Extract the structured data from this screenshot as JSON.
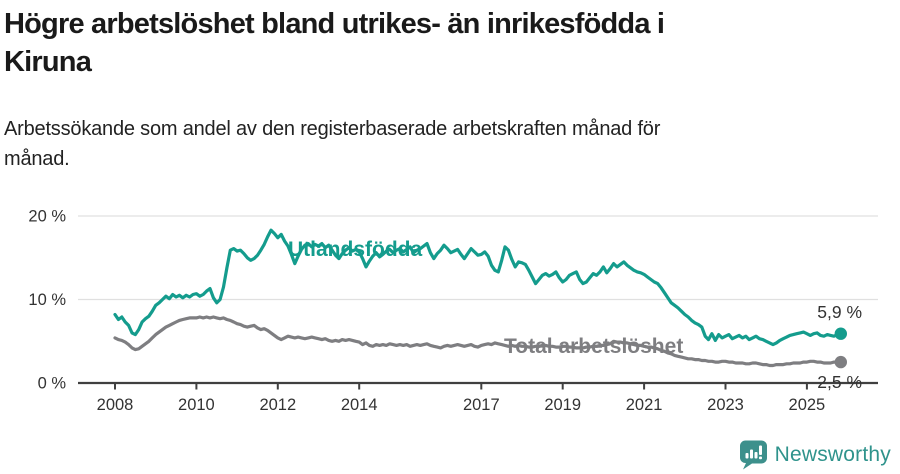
{
  "title": {
    "lines": [
      "Högre arbetslöshet bland utrikes- än inrikesfödda i",
      "Kiruna"
    ]
  },
  "subtitle": {
    "lines": [
      "Arbetssökande som andel av den registerbaserade arbetskraften månad för",
      "månad."
    ]
  },
  "footer": {
    "brand": "Newsworthy",
    "logo_icon": "newsworthy-bar-chart-speech-bubble-icon",
    "icon_color": "#3d908c",
    "text_color": "#2f938c"
  },
  "colors": {
    "background": "#ffffff",
    "title_text": "#1a1a1a",
    "axis_text": "#333333",
    "axis_line": "#404040",
    "gridline": "#e0e0e0",
    "series_utlandsfodda": "#149c8d",
    "series_total": "#7e7e81"
  },
  "chart_data": {
    "type": "line",
    "title": "Högre arbetslöshet bland utrikes- än inrikesfödda i Kiruna",
    "subtitle": "Arbetssökande som andel av den registerbaserade arbetskraften månad för månad.",
    "xlabel": "",
    "ylabel": "",
    "unit": "%",
    "grid": "horizontal",
    "legend": "inline-labels",
    "xlim": [
      2007.9,
      2026.0
    ],
    "ylim": [
      0,
      20.8
    ],
    "x_ticks": [
      2008,
      2010,
      2012,
      2014,
      2017,
      2019,
      2021,
      2023,
      2025
    ],
    "y_ticks": [
      {
        "value": 0,
        "label": "0 %"
      },
      {
        "value": 10,
        "label": "10 %"
      },
      {
        "value": 20,
        "label": "20 %"
      }
    ],
    "start_year": 2008,
    "frequency": "monthly",
    "series": [
      {
        "name": "Utlandsfödda",
        "color": "#149c8d",
        "end_value": 5.9,
        "end_label": "5,9 %",
        "values_monthly": [
          8.2,
          7.6,
          7.9,
          7.3,
          6.9,
          6.0,
          5.8,
          6.4,
          7.3,
          7.7,
          8.0,
          8.6,
          9.3,
          9.6,
          10.0,
          10.4,
          10.1,
          10.6,
          10.3,
          10.5,
          10.2,
          10.5,
          10.3,
          10.6,
          10.7,
          10.4,
          10.6,
          11.0,
          11.3,
          10.2,
          9.6,
          10.0,
          11.5,
          13.8,
          15.9,
          16.1,
          15.8,
          15.9,
          15.5,
          15.0,
          14.7,
          14.9,
          15.3,
          15.9,
          16.6,
          17.5,
          18.3,
          17.9,
          17.4,
          17.8,
          17.0,
          16.4,
          15.4,
          14.3,
          15.2,
          16.0,
          16.5,
          16.7,
          16.3,
          16.6,
          16.4,
          16.7,
          16.2,
          16.5,
          15.9,
          15.3,
          14.9,
          15.5,
          15.9,
          16.2,
          15.8,
          16.0,
          15.7,
          14.9,
          13.9,
          14.6,
          15.2,
          15.6,
          15.1,
          15.4,
          15.8,
          16.0,
          15.6,
          15.9,
          16.1,
          15.7,
          16.0,
          16.3,
          15.6,
          15.9,
          16.1,
          16.4,
          16.7,
          15.6,
          14.9,
          15.5,
          15.9,
          16.5,
          16.1,
          15.6,
          15.8,
          16.0,
          15.4,
          14.9,
          15.5,
          16.1,
          15.7,
          15.3,
          15.4,
          15.7,
          15.2,
          14.1,
          13.5,
          13.3,
          14.7,
          16.3,
          15.9,
          14.8,
          13.9,
          14.5,
          14.4,
          14.2,
          13.5,
          12.7,
          11.9,
          12.4,
          12.9,
          13.1,
          12.8,
          13.0,
          13.3,
          12.6,
          12.1,
          12.4,
          12.9,
          13.1,
          13.3,
          12.4,
          11.9,
          12.1,
          12.6,
          13.1,
          12.9,
          13.3,
          13.9,
          13.2,
          13.7,
          14.3,
          13.9,
          14.2,
          14.5,
          14.1,
          13.8,
          13.5,
          13.3,
          13.2,
          13.0,
          12.7,
          12.4,
          12.1,
          11.9,
          11.4,
          10.8,
          10.2,
          9.6,
          9.3,
          9.0,
          8.6,
          8.2,
          7.9,
          7.5,
          7.2,
          7.0,
          6.7,
          5.6,
          5.2,
          5.9,
          5.1,
          5.8,
          5.4,
          5.6,
          5.8,
          5.3,
          5.5,
          5.7,
          5.4,
          5.6,
          5.2,
          5.4,
          5.6,
          5.3,
          5.2,
          5.0,
          4.8,
          4.6,
          4.8,
          5.1,
          5.3,
          5.5,
          5.7,
          5.8,
          5.9,
          6.0,
          6.1,
          5.9,
          5.7,
          5.9,
          6.0,
          5.7,
          5.6,
          5.8,
          5.7,
          5.6,
          5.8,
          5.9
        ]
      },
      {
        "name": "Total arbetslöshet",
        "color": "#7e7e81",
        "end_value": 2.5,
        "end_label": "2,5 %",
        "values_monthly": [
          5.4,
          5.2,
          5.1,
          4.9,
          4.6,
          4.2,
          4.0,
          4.1,
          4.4,
          4.7,
          5.0,
          5.4,
          5.8,
          6.1,
          6.4,
          6.7,
          6.9,
          7.1,
          7.3,
          7.5,
          7.6,
          7.7,
          7.8,
          7.8,
          7.8,
          7.9,
          7.8,
          7.9,
          7.8,
          7.9,
          7.8,
          7.7,
          7.8,
          7.6,
          7.5,
          7.3,
          7.1,
          7.0,
          6.8,
          6.7,
          6.8,
          6.9,
          6.6,
          6.4,
          6.5,
          6.3,
          6.0,
          5.7,
          5.4,
          5.2,
          5.4,
          5.6,
          5.5,
          5.4,
          5.5,
          5.4,
          5.3,
          5.4,
          5.5,
          5.4,
          5.3,
          5.2,
          5.3,
          5.1,
          5.0,
          5.1,
          5.0,
          5.2,
          5.1,
          5.2,
          5.1,
          5.0,
          4.9,
          4.6,
          4.8,
          4.5,
          4.4,
          4.6,
          4.5,
          4.6,
          4.5,
          4.7,
          4.6,
          4.5,
          4.6,
          4.5,
          4.6,
          4.4,
          4.5,
          4.6,
          4.5,
          4.6,
          4.7,
          4.5,
          4.4,
          4.3,
          4.2,
          4.4,
          4.5,
          4.4,
          4.5,
          4.6,
          4.5,
          4.4,
          4.5,
          4.6,
          4.4,
          4.3,
          4.5,
          4.6,
          4.7,
          4.6,
          4.8,
          4.7,
          4.6,
          4.5,
          4.4,
          4.5,
          4.4,
          4.5,
          4.4,
          4.4,
          4.3,
          4.3,
          4.4,
          4.4,
          4.5,
          4.5,
          4.4,
          4.4,
          4.3,
          4.3,
          4.4,
          4.4,
          4.3,
          4.3,
          4.2,
          4.2,
          4.2,
          4.3,
          4.3,
          4.4,
          4.4,
          4.5,
          4.5,
          4.6,
          4.7,
          5.0,
          4.9,
          4.9,
          4.8,
          4.8,
          4.7,
          4.6,
          4.5,
          4.5,
          4.4,
          4.3,
          4.3,
          4.2,
          4.1,
          3.9,
          3.8,
          3.6,
          3.5,
          3.3,
          3.2,
          3.1,
          3.0,
          2.9,
          2.9,
          2.8,
          2.8,
          2.7,
          2.7,
          2.6,
          2.6,
          2.5,
          2.5,
          2.6,
          2.6,
          2.5,
          2.5,
          2.4,
          2.4,
          2.4,
          2.3,
          2.3,
          2.4,
          2.4,
          2.3,
          2.2,
          2.2,
          2.1,
          2.1,
          2.2,
          2.2,
          2.2,
          2.3,
          2.3,
          2.4,
          2.4,
          2.4,
          2.5,
          2.5,
          2.6,
          2.6,
          2.5,
          2.5,
          2.4,
          2.4,
          2.4,
          2.5,
          2.5,
          2.5
        ]
      }
    ]
  }
}
